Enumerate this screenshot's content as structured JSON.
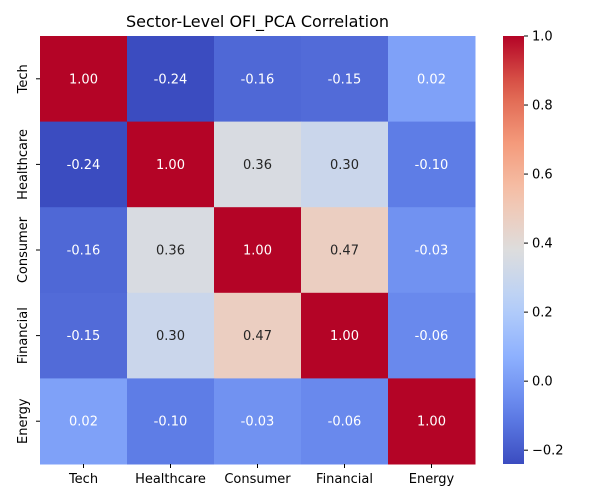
{
  "chart_data": {
    "type": "heatmap",
    "title": "Sector-Level OFI_PCA Correlation",
    "rows": [
      "Tech",
      "Healthcare",
      "Consumer",
      "Financial",
      "Energy"
    ],
    "columns": [
      "Tech",
      "Healthcare",
      "Consumer",
      "Financial",
      "Energy"
    ],
    "values": [
      [
        1.0,
        -0.24,
        -0.16,
        -0.15,
        0.02
      ],
      [
        -0.24,
        1.0,
        0.36,
        0.3,
        -0.1
      ],
      [
        -0.16,
        0.36,
        1.0,
        0.47,
        -0.03
      ],
      [
        -0.15,
        0.3,
        0.47,
        1.0,
        -0.06
      ],
      [
        0.02,
        -0.1,
        -0.03,
        -0.06,
        1.0
      ]
    ],
    "annotations": [
      [
        "1.00",
        "-0.24",
        "-0.16",
        "-0.15",
        "0.02"
      ],
      [
        "-0.24",
        "1.00",
        "0.36",
        "0.30",
        "-0.10"
      ],
      [
        "-0.16",
        "0.36",
        "1.00",
        "0.47",
        "-0.03"
      ],
      [
        "-0.15",
        "0.30",
        "0.47",
        "1.00",
        "-0.06"
      ],
      [
        "0.02",
        "-0.10",
        "-0.03",
        "-0.06",
        "1.00"
      ]
    ],
    "colormap": "coolwarm",
    "vmin": -0.24,
    "vmax": 1.0,
    "colorbar_ticks": [
      "1.0",
      "0.8",
      "0.6",
      "0.4",
      "0.2",
      "0.0",
      "−0.2"
    ],
    "colorbar_tick_values": [
      1.0,
      0.8,
      0.6,
      0.4,
      0.2,
      0.0,
      -0.2
    ]
  }
}
